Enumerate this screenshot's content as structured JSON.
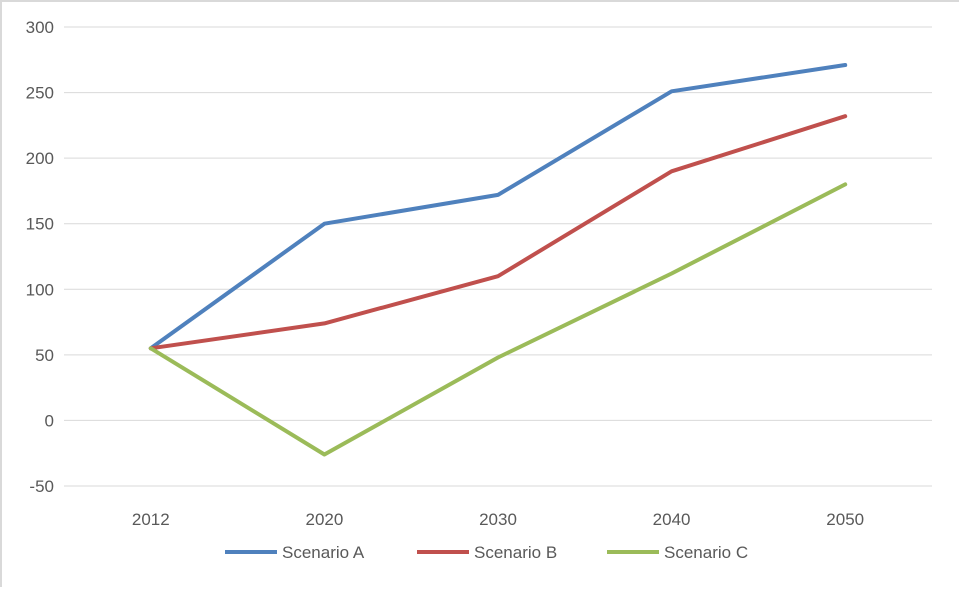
{
  "chart_data": {
    "type": "line",
    "title": "",
    "xlabel": "",
    "ylabel": "",
    "categories": [
      "2012",
      "2020",
      "2030",
      "2040",
      "2050"
    ],
    "ylim": [
      -50,
      300
    ],
    "yticks": [
      300,
      250,
      200,
      150,
      100,
      50,
      0,
      -50
    ],
    "grid": true,
    "legend": "bottom",
    "series": [
      {
        "name": "Scenario A",
        "color": "#4f81bd",
        "values": [
          55,
          150,
          172,
          251,
          271
        ]
      },
      {
        "name": "Scenario B",
        "color": "#c0504d",
        "values": [
          55,
          74,
          110,
          190,
          232
        ]
      },
      {
        "name": "Scenario C",
        "color": "#9bbb59",
        "values": [
          55,
          -26,
          48,
          112,
          180
        ]
      }
    ]
  }
}
